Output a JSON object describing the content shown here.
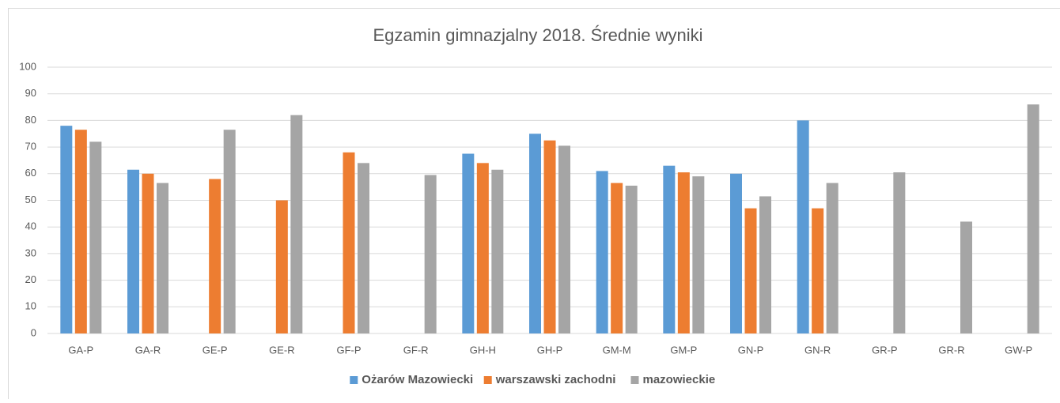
{
  "chart_data": {
    "type": "bar",
    "title": "Egzamin gimnazjalny 2018. Średnie wyniki",
    "categories": [
      "GA-P",
      "GA-R",
      "GE-P",
      "GE-R",
      "GF-P",
      "GF-R",
      "GH-H",
      "GH-P",
      "GM-M",
      "GM-P",
      "GN-P",
      "GN-R",
      "GR-P",
      "GR-R",
      "GW-P"
    ],
    "series": [
      {
        "name": "Ożarów Mazowiecki",
        "color": "#5b9bd5",
        "values": [
          78,
          61.5,
          null,
          null,
          null,
          null,
          67.5,
          75,
          61,
          63,
          60,
          80,
          null,
          null,
          null
        ]
      },
      {
        "name": "warszawski zachodni",
        "color": "#ed7d31",
        "values": [
          76.5,
          60,
          58,
          50,
          68,
          null,
          64,
          72.5,
          56.5,
          60.5,
          47,
          47,
          null,
          null,
          null
        ]
      },
      {
        "name": "mazowieckie",
        "color": "#a5a5a5",
        "values": [
          72,
          56.5,
          76.5,
          82,
          64,
          59.5,
          61.5,
          70.5,
          55.5,
          59,
          51.5,
          56.5,
          60.5,
          42,
          86
        ]
      }
    ],
    "ylim": [
      0,
      100
    ],
    "yticks": [
      0,
      10,
      20,
      30,
      40,
      50,
      60,
      70,
      80,
      90,
      100
    ],
    "grid": true,
    "legend": "bottom"
  }
}
